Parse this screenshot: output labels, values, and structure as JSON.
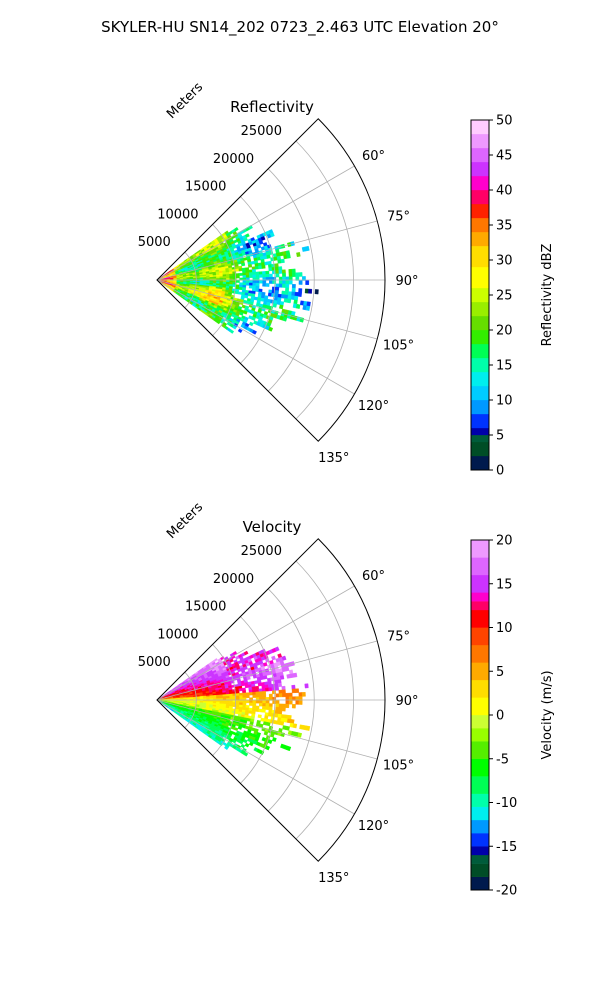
{
  "figure": {
    "title": "SKYLER-HU  SN14_202  0723_2.463 UTC Elevation 20°"
  },
  "chart_data": [
    {
      "type": "heatmap",
      "projection": "polar-sector",
      "title": "Reflectivity",
      "radial_axis_label": "Meters",
      "radial_ticks": [
        "5000",
        "10000",
        "15000",
        "20000",
        "25000"
      ],
      "radial_tick_values": [
        5000,
        10000,
        15000,
        20000,
        25000
      ],
      "radial_range": [
        0,
        29000
      ],
      "angular_ticks": [
        "60°",
        "75°",
        "90°",
        "105°",
        "120°",
        "135°"
      ],
      "angular_tick_values": [
        60,
        75,
        90,
        105,
        120,
        135
      ],
      "angular_range": [
        45,
        135
      ],
      "grid": true,
      "field": "reflectivity",
      "data_extent": {
        "azimuth": [
          55,
          125
        ],
        "range_m": [
          0,
          19000
        ]
      },
      "colorbar": {
        "label": "Reflectivity dBZ",
        "range": [
          0,
          50
        ],
        "ticks": [
          "0",
          "5",
          "10",
          "15",
          "20",
          "25",
          "30",
          "35",
          "40",
          "45",
          "50"
        ],
        "tick_values": [
          0,
          5,
          10,
          15,
          20,
          25,
          30,
          35,
          40,
          45,
          50
        ],
        "colormap": [
          {
            "value": 0,
            "color": "#001a4d"
          },
          {
            "value": 2,
            "color": "#004d26"
          },
          {
            "value": 4,
            "color": "#005c3b"
          },
          {
            "value": 5,
            "color": "#0000aa"
          },
          {
            "value": 6,
            "color": "#0033ff"
          },
          {
            "value": 8,
            "color": "#0099ff"
          },
          {
            "value": 10,
            "color": "#00ccff"
          },
          {
            "value": 12,
            "color": "#00eeee"
          },
          {
            "value": 14,
            "color": "#00ffaa"
          },
          {
            "value": 16,
            "color": "#00ff55"
          },
          {
            "value": 18,
            "color": "#33ee00"
          },
          {
            "value": 20,
            "color": "#66dd00"
          },
          {
            "value": 22,
            "color": "#99ee00"
          },
          {
            "value": 24,
            "color": "#ccff00"
          },
          {
            "value": 26,
            "color": "#ffff00"
          },
          {
            "value": 29,
            "color": "#ffdd00"
          },
          {
            "value": 32,
            "color": "#ffaa00"
          },
          {
            "value": 34,
            "color": "#ff7700"
          },
          {
            "value": 36,
            "color": "#ff2200"
          },
          {
            "value": 38,
            "color": "#ff0066"
          },
          {
            "value": 40,
            "color": "#ff00cc"
          },
          {
            "value": 42,
            "color": "#cc33ff"
          },
          {
            "value": 44,
            "color": "#dd66ff"
          },
          {
            "value": 46,
            "color": "#ee99ff"
          },
          {
            "value": 48,
            "color": "#ffccff"
          },
          {
            "value": 50,
            "color": "#ffe6ff"
          }
        ]
      }
    },
    {
      "type": "heatmap",
      "projection": "polar-sector",
      "title": "Velocity",
      "radial_axis_label": "Meters",
      "radial_ticks": [
        "5000",
        "10000",
        "15000",
        "20000",
        "25000"
      ],
      "radial_tick_values": [
        5000,
        10000,
        15000,
        20000,
        25000
      ],
      "radial_range": [
        0,
        29000
      ],
      "angular_ticks": [
        "60°",
        "75°",
        "90°",
        "105°",
        "120°",
        "135°"
      ],
      "angular_tick_values": [
        60,
        75,
        90,
        105,
        120,
        135
      ],
      "angular_range": [
        45,
        135
      ],
      "grid": true,
      "field": "velocity",
      "data_extent": {
        "azimuth": [
          55,
          125
        ],
        "range_m": [
          0,
          19000
        ]
      },
      "colorbar": {
        "label": "Velocity (m/s)",
        "range": [
          -20,
          20
        ],
        "ticks": [
          "-20",
          "-15",
          "-10",
          "-5",
          "0",
          "5",
          "10",
          "15",
          "20"
        ],
        "tick_values": [
          -20,
          -15,
          -10,
          -5,
          0,
          5,
          10,
          15,
          20
        ],
        "colormap": [
          {
            "value": -20,
            "color": "#001a4d"
          },
          {
            "value": -18.5,
            "color": "#004d26"
          },
          {
            "value": -17,
            "color": "#005c3b"
          },
          {
            "value": -16,
            "color": "#0000aa"
          },
          {
            "value": -15,
            "color": "#0033ff"
          },
          {
            "value": -13.5,
            "color": "#0099ff"
          },
          {
            "value": -12,
            "color": "#00eeee"
          },
          {
            "value": -10.5,
            "color": "#00ffaa"
          },
          {
            "value": -9,
            "color": "#00ff55"
          },
          {
            "value": -7,
            "color": "#00ff00"
          },
          {
            "value": -5,
            "color": "#55ee00"
          },
          {
            "value": -3,
            "color": "#99ff00"
          },
          {
            "value": -1.5,
            "color": "#ccff33"
          },
          {
            "value": 0,
            "color": "#ffff00"
          },
          {
            "value": 2,
            "color": "#ffdd00"
          },
          {
            "value": 4,
            "color": "#ffaa00"
          },
          {
            "value": 6,
            "color": "#ff7700"
          },
          {
            "value": 8,
            "color": "#ff4400"
          },
          {
            "value": 10,
            "color": "#ff0000"
          },
          {
            "value": 12,
            "color": "#ff0066"
          },
          {
            "value": 13,
            "color": "#ff00cc"
          },
          {
            "value": 14,
            "color": "#cc33ff"
          },
          {
            "value": 16,
            "color": "#dd66ff"
          },
          {
            "value": 18,
            "color": "#ee99ff"
          },
          {
            "value": 20,
            "color": "#ffe6ff"
          }
        ]
      }
    }
  ]
}
